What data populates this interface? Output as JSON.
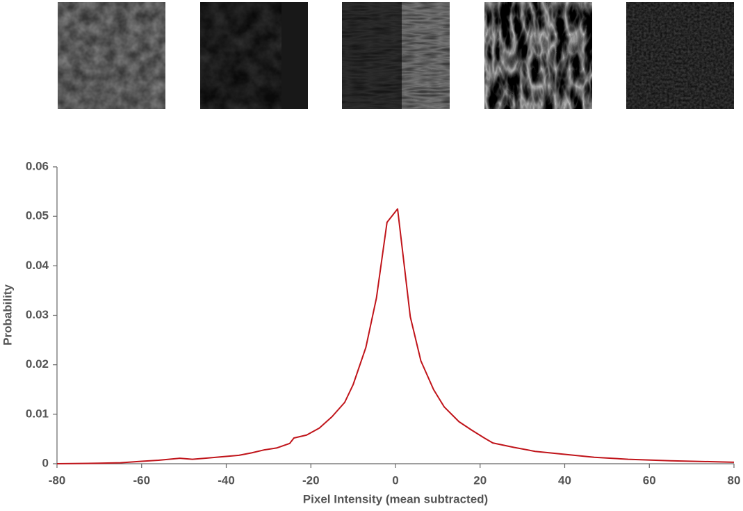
{
  "chart_data": {
    "type": "line",
    "x_label": "Pixel Intensity (mean subtracted)",
    "y_label": "Probability",
    "x": [
      -80,
      -70,
      -65,
      -60,
      -56,
      -51,
      -48,
      -45,
      -41,
      -37,
      -34,
      -31,
      -28,
      -25,
      -24,
      -21,
      -18,
      -15,
      -12,
      -10,
      -7,
      -4.5,
      -2,
      0.5,
      3.5,
      6,
      9,
      11.5,
      15,
      18,
      21,
      23,
      28,
      33,
      40,
      47,
      55,
      65,
      75,
      80
    ],
    "series": [
      {
        "color": "#c0141a",
        "values": [
          0,
          0.0001,
          0.0002,
          0.0005,
          0.0007,
          0.0011,
          0.0009,
          0.0011,
          0.0014,
          0.0017,
          0.0022,
          0.0028,
          0.0032,
          0.0041,
          0.0052,
          0.0058,
          0.0072,
          0.0095,
          0.0124,
          0.016,
          0.0235,
          0.0335,
          0.0488,
          0.0515,
          0.0297,
          0.0208,
          0.015,
          0.0115,
          0.0085,
          0.0068,
          0.0052,
          0.0042,
          0.0033,
          0.0025,
          0.0019,
          0.0013,
          0.0009,
          0.0006,
          0.0004,
          0.0003
        ]
      }
    ],
    "xlim": [
      -80,
      80
    ],
    "xticks": [
      -80,
      -60,
      -40,
      -20,
      0,
      20,
      40,
      60,
      80
    ],
    "ylim": [
      0,
      0.06
    ],
    "yticks": [
      0,
      0.01,
      0.02,
      0.03,
      0.04,
      0.05,
      0.06
    ]
  }
}
